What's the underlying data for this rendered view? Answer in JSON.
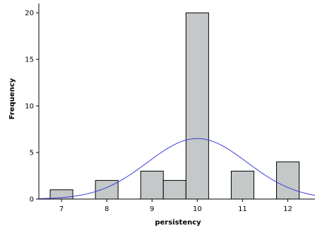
{
  "chart_data": {
    "type": "bar",
    "title": "",
    "xlabel": "persistency",
    "ylabel": "Frequency",
    "xlim": [
      6.5,
      12.6
    ],
    "ylim": [
      0,
      21
    ],
    "x_ticks": [
      7,
      8,
      9,
      10,
      11,
      12
    ],
    "y_ticks": [
      0,
      5,
      10,
      15,
      20
    ],
    "bin_width": 0.5,
    "bars": [
      {
        "x": 7.0,
        "value": 1
      },
      {
        "x": 8.0,
        "value": 2
      },
      {
        "x": 9.0,
        "value": 3
      },
      {
        "x": 9.5,
        "value": 2
      },
      {
        "x": 10.0,
        "value": 20
      },
      {
        "x": 11.0,
        "value": 3
      },
      {
        "x": 12.0,
        "value": 4
      }
    ],
    "normal_curve": {
      "mean": 10.0,
      "std_dev": 1.1,
      "peak": 6.5
    },
    "grid": false,
    "colors": {
      "bar_fill": "#c4c8c8",
      "bar_stroke": "#000000",
      "curve": "#3d3ddb",
      "axis": "#000000"
    }
  }
}
